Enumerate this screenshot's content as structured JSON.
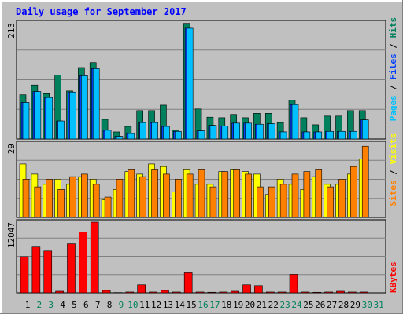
{
  "chart_data": [
    {
      "type": "bar",
      "title": "Daily usage for September 2017",
      "ylim": [
        0,
        213
      ],
      "yticks": [
        213
      ],
      "legend_separator": " / ",
      "series": [
        {
          "name": "Hits",
          "color": "#00805c",
          "values": [
            81,
            99,
            83,
            117,
            88,
            131,
            140,
            36,
            13,
            23,
            52,
            52,
            62,
            16,
            212,
            55,
            40,
            39,
            45,
            39,
            47,
            47,
            30,
            71,
            39,
            26,
            42,
            42,
            52,
            52,
            null
          ]
        },
        {
          "name": "Files",
          "color": "#0040ff",
          "values": [
            67,
            87,
            76,
            33,
            86,
            116,
            129,
            16,
            5,
            10,
            30,
            30,
            23,
            14,
            203,
            15,
            25,
            24,
            29,
            29,
            27,
            28,
            13,
            63,
            13,
            13,
            14,
            14,
            14,
            35,
            null
          ]
        },
        {
          "name": "Pages",
          "color": "#00c0ff",
          "values": [
            67,
            87,
            76,
            33,
            86,
            116,
            129,
            16,
            5,
            10,
            30,
            30,
            23,
            14,
            203,
            15,
            25,
            24,
            29,
            29,
            27,
            28,
            13,
            63,
            13,
            13,
            14,
            14,
            14,
            35,
            null
          ]
        }
      ]
    },
    {
      "type": "bar",
      "ylim": [
        0,
        29
      ],
      "yticks": [
        29
      ],
      "legend_separator": " / ",
      "series": [
        {
          "name": "Visits",
          "color": "#ffff00",
          "values": [
            21,
            17,
            13,
            15,
            13,
            16,
            15,
            7,
            11,
            18,
            17,
            21,
            20,
            10,
            19,
            13,
            13,
            18,
            19,
            18,
            17,
            9,
            15,
            13,
            11,
            16,
            13,
            13,
            17,
            23,
            null
          ]
        },
        {
          "name": "Sites",
          "color": "#ff8000",
          "values": [
            15,
            12,
            15,
            11,
            16,
            17,
            13,
            8,
            15,
            19,
            16,
            19,
            17,
            15,
            17,
            19,
            12,
            18,
            19,
            17,
            12,
            12,
            13,
            17,
            18,
            19,
            12,
            15,
            20,
            28,
            null
          ]
        }
      ]
    },
    {
      "type": "bar",
      "ylim": [
        0,
        12047
      ],
      "yticks": [
        12047
      ],
      "categories": [
        "1",
        "2",
        "3",
        "4",
        "5",
        "6",
        "7",
        "8",
        "9",
        "10",
        "11",
        "12",
        "13",
        "14",
        "15",
        "16",
        "17",
        "18",
        "19",
        "20",
        "21",
        "22",
        "23",
        "24",
        "25",
        "26",
        "27",
        "28",
        "29",
        "30",
        "31"
      ],
      "category_colors": [
        "#000000",
        "#00805c",
        "#00805c",
        "#000000",
        "#000000",
        "#000000",
        "#000000",
        "#000000",
        "#00805c",
        "#00805c",
        "#000000",
        "#000000",
        "#000000",
        "#000000",
        "#000000",
        "#00805c",
        "#00805c",
        "#000000",
        "#000000",
        "#000000",
        "#000000",
        "#000000",
        "#00805c",
        "#00805c",
        "#000000",
        "#000000",
        "#000000",
        "#000000",
        "#000000",
        "#00805c",
        "#00805c"
      ],
      "series": [
        {
          "name": "KBytes",
          "color": "#ff0000",
          "values": [
            6160,
            7800,
            7120,
            270,
            8350,
            10400,
            12047,
            410,
            50,
            140,
            1370,
            140,
            410,
            140,
            3420,
            140,
            100,
            140,
            270,
            1370,
            1230,
            140,
            140,
            3150,
            140,
            100,
            140,
            270,
            140,
            140,
            null
          ]
        }
      ]
    }
  ]
}
